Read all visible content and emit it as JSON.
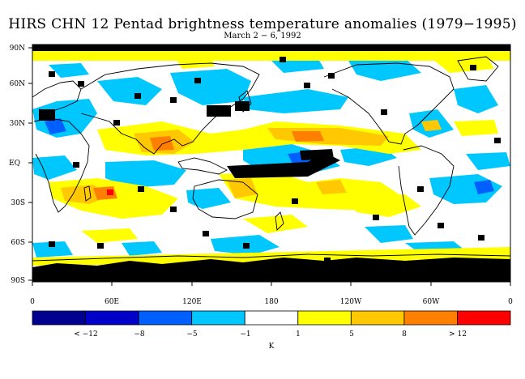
{
  "title": "HIRS CHN 12 Pentad brightness temperature anomalies (1979−1995)",
  "subtitle": "March 2 − 6, 1992",
  "map": {
    "lat_labels": [
      "90N",
      "60N",
      "30N",
      "EQ",
      "30S",
      "60S",
      "90S"
    ],
    "lon_labels": [
      "0",
      "60E",
      "120E",
      "180",
      "120W",
      "60W",
      "0"
    ],
    "lat_range": [
      -90,
      90
    ],
    "lon_range": [
      0,
      360
    ],
    "colors": {
      "no_data": "#000000",
      "land_outline": "#000000",
      "strong_cold": "#00d0ff",
      "mild_warm": "#ffff00",
      "warm": "#ffd200",
      "hot": "#ffa000",
      "very_hot": "#ff6600"
    }
  },
  "legend": {
    "colors": [
      "#000090",
      "#0000c8",
      "#0060ff",
      "#00c8ff",
      "#ffffff",
      "#ffff00",
      "#ffc800",
      "#ff8000",
      "#ff0000"
    ],
    "labels": [
      "< −12",
      "−8",
      "−5",
      "−1",
      "1",
      "5",
      "8",
      "> 12"
    ],
    "unit": "K"
  }
}
